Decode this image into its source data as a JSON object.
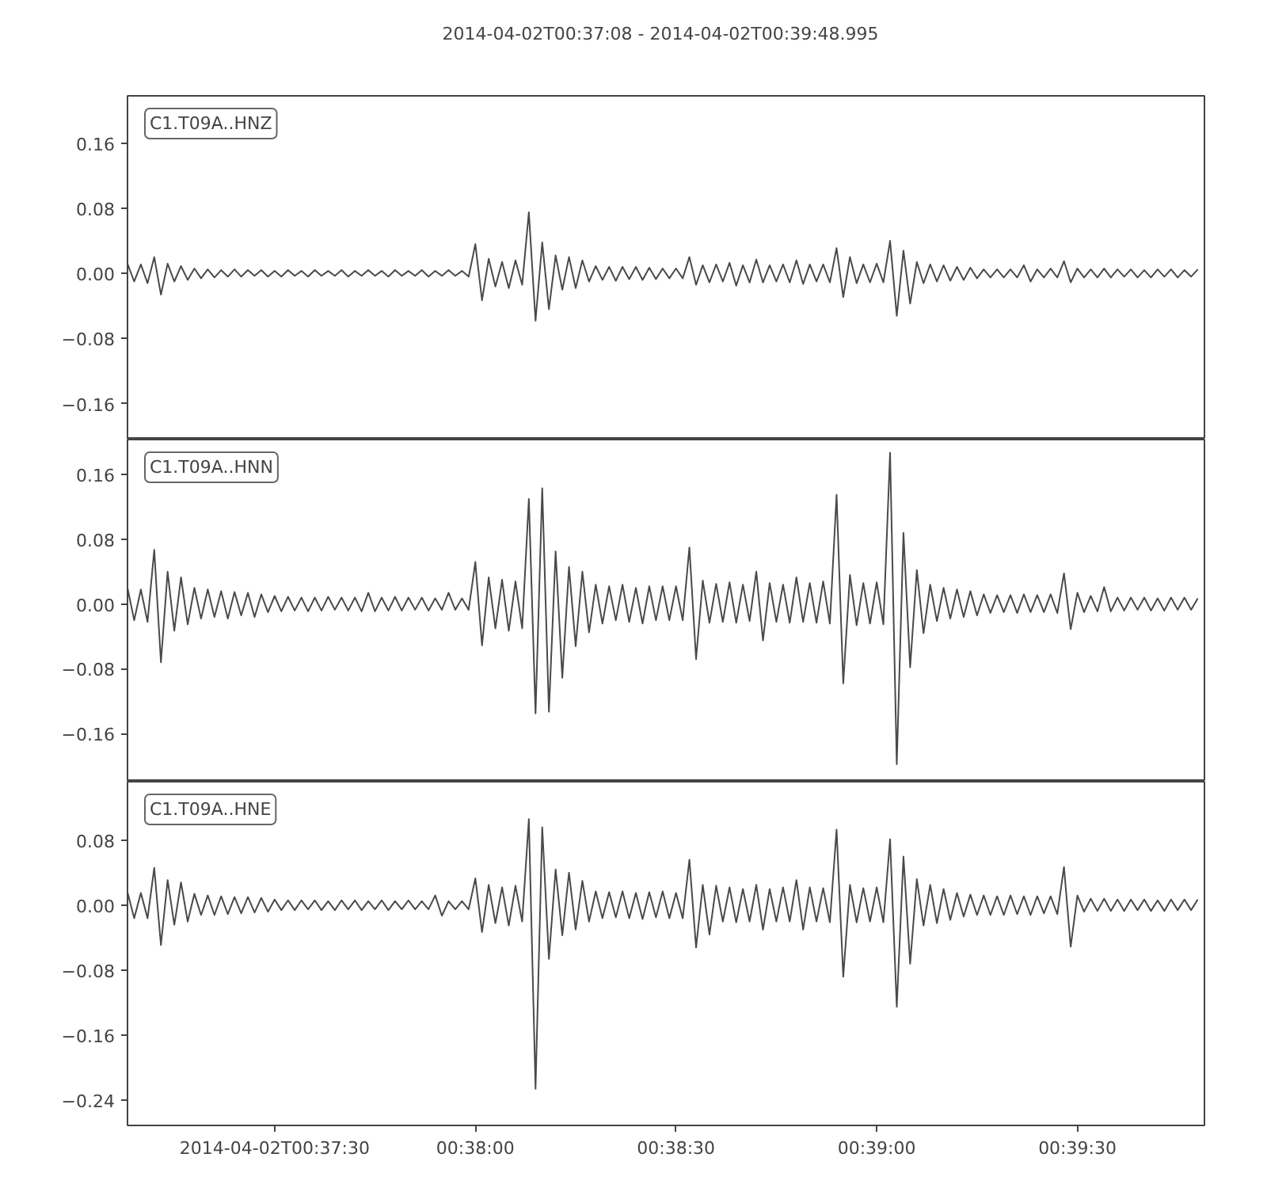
{
  "chart_data": [
    {
      "type": "line",
      "title": "2014-04-02T00:37:08  -  2014-04-02T00:39:48.995",
      "annotations": [
        "C1.T09A..HNZ"
      ],
      "tick_labels": "y",
      "xlim": [
        "2014-04-02T00:37:08",
        "2014-04-02T00:39:48.995"
      ],
      "ylim": [
        -0.204,
        0.218
      ],
      "yticks": [
        {
          "value": -0.16,
          "label": "−0.16"
        },
        {
          "value": -0.08,
          "label": "−0.08"
        },
        {
          "value": 0,
          "label": "0.00"
        },
        {
          "value": 0.08,
          "label": "0.08"
        },
        {
          "value": 0.16,
          "label": "0.16"
        }
      ],
      "x": [
        "2014-04-02T00:37:08",
        "2014-04-02T00:37:09",
        "2014-04-02T00:37:10",
        "2014-04-02T00:37:11",
        "2014-04-02T00:37:12",
        "2014-04-02T00:37:13",
        "2014-04-02T00:37:14",
        "2014-04-02T00:37:15",
        "2014-04-02T00:37:16",
        "2014-04-02T00:37:17",
        "2014-04-02T00:37:18",
        "2014-04-02T00:37:19",
        "2014-04-02T00:37:20",
        "2014-04-02T00:37:21",
        "2014-04-02T00:37:22",
        "2014-04-02T00:37:23",
        "2014-04-02T00:37:24",
        "2014-04-02T00:37:25",
        "2014-04-02T00:37:26",
        "2014-04-02T00:37:27",
        "2014-04-02T00:37:28",
        "2014-04-02T00:37:29",
        "2014-04-02T00:37:30",
        "2014-04-02T00:37:31",
        "2014-04-02T00:37:32",
        "2014-04-02T00:37:33",
        "2014-04-02T00:37:34",
        "2014-04-02T00:37:35",
        "2014-04-02T00:37:36",
        "2014-04-02T00:37:37",
        "2014-04-02T00:37:38",
        "2014-04-02T00:37:39",
        "2014-04-02T00:37:40",
        "2014-04-02T00:37:41",
        "2014-04-02T00:37:42",
        "2014-04-02T00:37:43",
        "2014-04-02T00:37:44",
        "2014-04-02T00:37:45",
        "2014-04-02T00:37:46",
        "2014-04-02T00:37:47",
        "2014-04-02T00:37:48",
        "2014-04-02T00:37:49",
        "2014-04-02T00:37:50",
        "2014-04-02T00:37:51",
        "2014-04-02T00:37:52",
        "2014-04-02T00:37:53",
        "2014-04-02T00:37:54",
        "2014-04-02T00:37:55",
        "2014-04-02T00:37:56",
        "2014-04-02T00:37:57",
        "2014-04-02T00:37:58",
        "2014-04-02T00:37:59",
        "2014-04-02T00:38:00",
        "2014-04-02T00:38:01",
        "2014-04-02T00:38:02",
        "2014-04-02T00:38:03",
        "2014-04-02T00:38:04",
        "2014-04-02T00:38:05",
        "2014-04-02T00:38:06",
        "2014-04-02T00:38:07",
        "2014-04-02T00:38:08",
        "2014-04-02T00:38:09",
        "2014-04-02T00:38:10",
        "2014-04-02T00:38:11",
        "2014-04-02T00:38:12",
        "2014-04-02T00:38:13",
        "2014-04-02T00:38:14",
        "2014-04-02T00:38:15",
        "2014-04-02T00:38:16",
        "2014-04-02T00:38:17",
        "2014-04-02T00:38:18",
        "2014-04-02T00:38:19",
        "2014-04-02T00:38:20",
        "2014-04-02T00:38:21",
        "2014-04-02T00:38:22",
        "2014-04-02T00:38:23",
        "2014-04-02T00:38:24",
        "2014-04-02T00:38:25",
        "2014-04-02T00:38:26",
        "2014-04-02T00:38:27",
        "2014-04-02T00:38:28",
        "2014-04-02T00:38:29",
        "2014-04-02T00:38:30",
        "2014-04-02T00:38:31",
        "2014-04-02T00:38:32",
        "2014-04-02T00:38:33",
        "2014-04-02T00:38:34",
        "2014-04-02T00:38:35",
        "2014-04-02T00:38:36",
        "2014-04-02T00:38:37",
        "2014-04-02T00:38:38",
        "2014-04-02T00:38:39",
        "2014-04-02T00:38:40",
        "2014-04-02T00:38:41",
        "2014-04-02T00:38:42",
        "2014-04-02T00:38:43",
        "2014-04-02T00:38:44",
        "2014-04-02T00:38:45",
        "2014-04-02T00:38:46",
        "2014-04-02T00:38:47",
        "2014-04-02T00:38:48",
        "2014-04-02T00:38:49",
        "2014-04-02T00:38:50",
        "2014-04-02T00:38:51",
        "2014-04-02T00:38:52",
        "2014-04-02T00:38:53",
        "2014-04-02T00:38:54",
        "2014-04-02T00:38:55",
        "2014-04-02T00:38:56",
        "2014-04-02T00:38:57",
        "2014-04-02T00:38:58",
        "2014-04-02T00:38:59",
        "2014-04-02T00:39:00",
        "2014-04-02T00:39:01",
        "2014-04-02T00:39:02",
        "2014-04-02T00:39:03",
        "2014-04-02T00:39:04",
        "2014-04-02T00:39:05",
        "2014-04-02T00:39:06",
        "2014-04-02T00:39:07",
        "2014-04-02T00:39:08",
        "2014-04-02T00:39:09",
        "2014-04-02T00:39:10",
        "2014-04-02T00:39:11",
        "2014-04-02T00:39:12",
        "2014-04-02T00:39:13",
        "2014-04-02T00:39:14",
        "2014-04-02T00:39:15",
        "2014-04-02T00:39:16",
        "2014-04-02T00:39:17",
        "2014-04-02T00:39:18",
        "2014-04-02T00:39:19",
        "2014-04-02T00:39:20",
        "2014-04-02T00:39:21",
        "2014-04-02T00:39:22",
        "2014-04-02T00:39:23",
        "2014-04-02T00:39:24",
        "2014-04-02T00:39:25",
        "2014-04-02T00:39:26",
        "2014-04-02T00:39:27",
        "2014-04-02T00:39:28",
        "2014-04-02T00:39:29",
        "2014-04-02T00:39:30",
        "2014-04-02T00:39:31",
        "2014-04-02T00:39:32",
        "2014-04-02T00:39:33",
        "2014-04-02T00:39:34",
        "2014-04-02T00:39:35",
        "2014-04-02T00:39:36",
        "2014-04-02T00:39:37",
        "2014-04-02T00:39:38",
        "2014-04-02T00:39:39",
        "2014-04-02T00:39:40",
        "2014-04-02T00:39:41",
        "2014-04-02T00:39:42",
        "2014-04-02T00:39:43",
        "2014-04-02T00:39:44",
        "2014-04-02T00:39:45",
        "2014-04-02T00:39:46",
        "2014-04-02T00:39:47",
        "2014-04-02T00:39:48"
      ],
      "series": [
        {
          "color": "#4a4a4a",
          "values": [
            0.012,
            -0.01,
            0.011,
            -0.012,
            0.02,
            -0.026,
            0.012,
            -0.01,
            0.009,
            -0.008,
            0.006,
            -0.006,
            0.005,
            -0.005,
            0.004,
            -0.004,
            0.005,
            -0.004,
            0.004,
            -0.003,
            0.004,
            -0.004,
            0.003,
            -0.004,
            0.004,
            -0.003,
            0.003,
            -0.004,
            0.004,
            -0.003,
            0.003,
            -0.003,
            0.004,
            -0.004,
            0.003,
            -0.003,
            0.004,
            -0.003,
            0.003,
            -0.004,
            0.004,
            -0.003,
            0.003,
            -0.003,
            0.004,
            -0.004,
            0.003,
            -0.003,
            0.004,
            -0.003,
            0.003,
            -0.004,
            0.036,
            -0.033,
            0.018,
            -0.016,
            0.014,
            -0.018,
            0.016,
            -0.014,
            0.075,
            -0.058,
            0.038,
            -0.044,
            0.022,
            -0.02,
            0.02,
            -0.018,
            0.016,
            -0.01,
            0.009,
            -0.008,
            0.008,
            -0.009,
            0.008,
            -0.007,
            0.008,
            -0.008,
            0.007,
            -0.007,
            0.006,
            -0.006,
            0.006,
            -0.006,
            0.02,
            -0.014,
            0.01,
            -0.011,
            0.011,
            -0.01,
            0.013,
            -0.015,
            0.01,
            -0.011,
            0.017,
            -0.011,
            0.01,
            -0.01,
            0.011,
            -0.011,
            0.016,
            -0.013,
            0.011,
            -0.01,
            0.011,
            -0.011,
            0.031,
            -0.029,
            0.02,
            -0.012,
            0.011,
            -0.011,
            0.012,
            -0.011,
            0.04,
            -0.052,
            0.028,
            -0.037,
            0.014,
            -0.012,
            0.011,
            -0.01,
            0.01,
            -0.009,
            0.008,
            -0.008,
            0.007,
            -0.006,
            0.005,
            -0.005,
            0.005,
            -0.005,
            0.005,
            -0.005,
            0.01,
            -0.01,
            0.005,
            -0.005,
            0.006,
            -0.005,
            0.015,
            -0.011,
            0.006,
            -0.005,
            0.005,
            -0.005,
            0.006,
            -0.005,
            0.005,
            -0.004,
            0.005,
            -0.005,
            0.004,
            -0.005,
            0.005,
            -0.004,
            0.005,
            -0.005,
            0.004,
            -0.004,
            0.005
          ]
        }
      ]
    },
    {
      "type": "line",
      "annotations": [
        "C1.T09A..HNN"
      ],
      "tick_labels": "y",
      "xlim": [
        "2014-04-02T00:37:08",
        "2014-04-02T00:39:48.995"
      ],
      "ylim": [
        -0.2195,
        0.2033
      ],
      "yticks": [
        {
          "value": -0.16,
          "label": "−0.16"
        },
        {
          "value": -0.08,
          "label": "−0.08"
        },
        {
          "value": 0,
          "label": "0.00"
        },
        {
          "value": 0.08,
          "label": "0.08"
        },
        {
          "value": 0.16,
          "label": "0.16"
        }
      ],
      "x": [
        "2014-04-02T00:37:08",
        "2014-04-02T00:37:09",
        "2014-04-02T00:37:10",
        "2014-04-02T00:37:11",
        "2014-04-02T00:37:12",
        "2014-04-02T00:37:13",
        "2014-04-02T00:37:14",
        "2014-04-02T00:37:15",
        "2014-04-02T00:37:16",
        "2014-04-02T00:37:17",
        "2014-04-02T00:37:18",
        "2014-04-02T00:37:19",
        "2014-04-02T00:37:20",
        "2014-04-02T00:37:21",
        "2014-04-02T00:37:22",
        "2014-04-02T00:37:23",
        "2014-04-02T00:37:24",
        "2014-04-02T00:37:25",
        "2014-04-02T00:37:26",
        "2014-04-02T00:37:27",
        "2014-04-02T00:37:28",
        "2014-04-02T00:37:29",
        "2014-04-02T00:37:30",
        "2014-04-02T00:37:31",
        "2014-04-02T00:37:32",
        "2014-04-02T00:37:33",
        "2014-04-02T00:37:34",
        "2014-04-02T00:37:35",
        "2014-04-02T00:37:36",
        "2014-04-02T00:37:37",
        "2014-04-02T00:37:38",
        "2014-04-02T00:37:39",
        "2014-04-02T00:37:40",
        "2014-04-02T00:37:41",
        "2014-04-02T00:37:42",
        "2014-04-02T00:37:43",
        "2014-04-02T00:37:44",
        "2014-04-02T00:37:45",
        "2014-04-02T00:37:46",
        "2014-04-02T00:37:47",
        "2014-04-02T00:37:48",
        "2014-04-02T00:37:49",
        "2014-04-02T00:37:50",
        "2014-04-02T00:37:51",
        "2014-04-02T00:37:52",
        "2014-04-02T00:37:53",
        "2014-04-02T00:37:54",
        "2014-04-02T00:37:55",
        "2014-04-02T00:37:56",
        "2014-04-02T00:37:57",
        "2014-04-02T00:37:58",
        "2014-04-02T00:37:59",
        "2014-04-02T00:38:00",
        "2014-04-02T00:38:01",
        "2014-04-02T00:38:02",
        "2014-04-02T00:38:03",
        "2014-04-02T00:38:04",
        "2014-04-02T00:38:05",
        "2014-04-02T00:38:06",
        "2014-04-02T00:38:07",
        "2014-04-02T00:38:08",
        "2014-04-02T00:38:09",
        "2014-04-02T00:38:10",
        "2014-04-02T00:38:11",
        "2014-04-02T00:38:12",
        "2014-04-02T00:38:13",
        "2014-04-02T00:38:14",
        "2014-04-02T00:38:15",
        "2014-04-02T00:38:16",
        "2014-04-02T00:38:17",
        "2014-04-02T00:38:18",
        "2014-04-02T00:38:19",
        "2014-04-02T00:38:20",
        "2014-04-02T00:38:21",
        "2014-04-02T00:38:22",
        "2014-04-02T00:38:23",
        "2014-04-02T00:38:24",
        "2014-04-02T00:38:25",
        "2014-04-02T00:38:26",
        "2014-04-02T00:38:27",
        "2014-04-02T00:38:28",
        "2014-04-02T00:38:29",
        "2014-04-02T00:38:30",
        "2014-04-02T00:38:31",
        "2014-04-02T00:38:32",
        "2014-04-02T00:38:33",
        "2014-04-02T00:38:34",
        "2014-04-02T00:38:35",
        "2014-04-02T00:38:36",
        "2014-04-02T00:38:37",
        "2014-04-02T00:38:38",
        "2014-04-02T00:38:39",
        "2014-04-02T00:38:40",
        "2014-04-02T00:38:41",
        "2014-04-02T00:38:42",
        "2014-04-02T00:38:43",
        "2014-04-02T00:38:44",
        "2014-04-02T00:38:45",
        "2014-04-02T00:38:46",
        "2014-04-02T00:38:47",
        "2014-04-02T00:38:48",
        "2014-04-02T00:38:49",
        "2014-04-02T00:38:50",
        "2014-04-02T00:38:51",
        "2014-04-02T00:38:52",
        "2014-04-02T00:38:53",
        "2014-04-02T00:38:54",
        "2014-04-02T00:38:55",
        "2014-04-02T00:38:56",
        "2014-04-02T00:38:57",
        "2014-04-02T00:38:58",
        "2014-04-02T00:38:59",
        "2014-04-02T00:39:00",
        "2014-04-02T00:39:01",
        "2014-04-02T00:39:02",
        "2014-04-02T00:39:03",
        "2014-04-02T00:39:04",
        "2014-04-02T00:39:05",
        "2014-04-02T00:39:06",
        "2014-04-02T00:39:07",
        "2014-04-02T00:39:08",
        "2014-04-02T00:39:09",
        "2014-04-02T00:39:10",
        "2014-04-02T00:39:11",
        "2014-04-02T00:39:12",
        "2014-04-02T00:39:13",
        "2014-04-02T00:39:14",
        "2014-04-02T00:39:15",
        "2014-04-02T00:39:16",
        "2014-04-02T00:39:17",
        "2014-04-02T00:39:18",
        "2014-04-02T00:39:19",
        "2014-04-02T00:39:20",
        "2014-04-02T00:39:21",
        "2014-04-02T00:39:22",
        "2014-04-02T00:39:23",
        "2014-04-02T00:39:24",
        "2014-04-02T00:39:25",
        "2014-04-02T00:39:26",
        "2014-04-02T00:39:27",
        "2014-04-02T00:39:28",
        "2014-04-02T00:39:29",
        "2014-04-02T00:39:30",
        "2014-04-02T00:39:31",
        "2014-04-02T00:39:32",
        "2014-04-02T00:39:33",
        "2014-04-02T00:39:34",
        "2014-04-02T00:39:35",
        "2014-04-02T00:39:36",
        "2014-04-02T00:39:37",
        "2014-04-02T00:39:38",
        "2014-04-02T00:39:39",
        "2014-04-02T00:39:40",
        "2014-04-02T00:39:41",
        "2014-04-02T00:39:42",
        "2014-04-02T00:39:43",
        "2014-04-02T00:39:44",
        "2014-04-02T00:39:45",
        "2014-04-02T00:39:46",
        "2014-04-02T00:39:47",
        "2014-04-02T00:39:48"
      ],
      "series": [
        {
          "color": "#4a4a4a",
          "values": [
            0.02,
            -0.02,
            0.018,
            -0.022,
            0.067,
            -0.072,
            0.04,
            -0.033,
            0.033,
            -0.025,
            0.02,
            -0.018,
            0.018,
            -0.016,
            0.016,
            -0.018,
            0.015,
            -0.014,
            0.014,
            -0.016,
            0.012,
            -0.01,
            0.01,
            -0.009,
            0.009,
            -0.008,
            0.008,
            -0.009,
            0.008,
            -0.008,
            0.009,
            -0.007,
            0.008,
            -0.008,
            0.008,
            -0.009,
            0.014,
            -0.009,
            0.008,
            -0.008,
            0.009,
            -0.008,
            0.008,
            -0.007,
            0.008,
            -0.008,
            0.007,
            -0.007,
            0.014,
            -0.007,
            0.007,
            -0.007,
            0.052,
            -0.051,
            0.033,
            -0.03,
            0.03,
            -0.033,
            0.028,
            -0.03,
            0.13,
            -0.135,
            0.143,
            -0.133,
            0.065,
            -0.091,
            0.046,
            -0.052,
            0.04,
            -0.035,
            0.024,
            -0.024,
            0.022,
            -0.02,
            0.024,
            -0.022,
            0.02,
            -0.024,
            0.022,
            -0.02,
            0.022,
            -0.02,
            0.022,
            -0.02,
            0.07,
            -0.068,
            0.029,
            -0.023,
            0.025,
            -0.022,
            0.027,
            -0.023,
            0.024,
            -0.021,
            0.04,
            -0.045,
            0.026,
            -0.022,
            0.024,
            -0.023,
            0.033,
            -0.022,
            0.026,
            -0.023,
            0.028,
            -0.024,
            0.135,
            -0.098,
            0.036,
            -0.026,
            0.026,
            -0.024,
            0.027,
            -0.025,
            0.187,
            -0.198,
            0.088,
            -0.078,
            0.042,
            -0.036,
            0.024,
            -0.021,
            0.02,
            -0.018,
            0.018,
            -0.016,
            0.016,
            -0.014,
            0.012,
            -0.011,
            0.011,
            -0.01,
            0.011,
            -0.011,
            0.012,
            -0.01,
            0.011,
            -0.01,
            0.012,
            -0.011,
            0.038,
            -0.031,
            0.014,
            -0.01,
            0.01,
            -0.009,
            0.021,
            -0.009,
            0.008,
            -0.008,
            0.008,
            -0.007,
            0.008,
            -0.008,
            0.007,
            -0.008,
            0.008,
            -0.007,
            0.008,
            -0.007,
            0.007
          ]
        }
      ]
    },
    {
      "type": "line",
      "annotations": [
        "C1.T09A..HNE"
      ],
      "xlim": [
        "2014-04-02T00:37:08",
        "2014-04-02T00:39:48.995"
      ],
      "ylim": [
        -0.271,
        0.152
      ],
      "xticks": [
        {
          "value": "2014-04-02T00:37:30",
          "label": "2014-04-02T00:37:30"
        },
        {
          "value": "2014-04-02T00:38:00",
          "label": "00:38:00"
        },
        {
          "value": "2014-04-02T00:38:30",
          "label": "00:38:30"
        },
        {
          "value": "2014-04-02T00:39:00",
          "label": "00:39:00"
        },
        {
          "value": "2014-04-02T00:39:30",
          "label": "00:39:30"
        }
      ],
      "yticks": [
        {
          "value": -0.24,
          "label": "−0.24"
        },
        {
          "value": -0.16,
          "label": "−0.16"
        },
        {
          "value": -0.08,
          "label": "−0.08"
        },
        {
          "value": 0,
          "label": "0.00"
        },
        {
          "value": 0.08,
          "label": "0.08"
        }
      ],
      "x": [
        "2014-04-02T00:37:08",
        "2014-04-02T00:37:09",
        "2014-04-02T00:37:10",
        "2014-04-02T00:37:11",
        "2014-04-02T00:37:12",
        "2014-04-02T00:37:13",
        "2014-04-02T00:37:14",
        "2014-04-02T00:37:15",
        "2014-04-02T00:37:16",
        "2014-04-02T00:37:17",
        "2014-04-02T00:37:18",
        "2014-04-02T00:37:19",
        "2014-04-02T00:37:20",
        "2014-04-02T00:37:21",
        "2014-04-02T00:37:22",
        "2014-04-02T00:37:23",
        "2014-04-02T00:37:24",
        "2014-04-02T00:37:25",
        "2014-04-02T00:37:26",
        "2014-04-02T00:37:27",
        "2014-04-02T00:37:28",
        "2014-04-02T00:37:29",
        "2014-04-02T00:37:30",
        "2014-04-02T00:37:31",
        "2014-04-02T00:37:32",
        "2014-04-02T00:37:33",
        "2014-04-02T00:37:34",
        "2014-04-02T00:37:35",
        "2014-04-02T00:37:36",
        "2014-04-02T00:37:37",
        "2014-04-02T00:37:38",
        "2014-04-02T00:37:39",
        "2014-04-02T00:37:40",
        "2014-04-02T00:37:41",
        "2014-04-02T00:37:42",
        "2014-04-02T00:37:43",
        "2014-04-02T00:37:44",
        "2014-04-02T00:37:45",
        "2014-04-02T00:37:46",
        "2014-04-02T00:37:47",
        "2014-04-02T00:37:48",
        "2014-04-02T00:37:49",
        "2014-04-02T00:37:50",
        "2014-04-02T00:37:51",
        "2014-04-02T00:37:52",
        "2014-04-02T00:37:53",
        "2014-04-02T00:37:54",
        "2014-04-02T00:37:55",
        "2014-04-02T00:37:56",
        "2014-04-02T00:37:57",
        "2014-04-02T00:37:58",
        "2014-04-02T00:37:59",
        "2014-04-02T00:38:00",
        "2014-04-02T00:38:01",
        "2014-04-02T00:38:02",
        "2014-04-02T00:38:03",
        "2014-04-02T00:38:04",
        "2014-04-02T00:38:05",
        "2014-04-02T00:38:06",
        "2014-04-02T00:38:07",
        "2014-04-02T00:38:08",
        "2014-04-02T00:38:09",
        "2014-04-02T00:38:10",
        "2014-04-02T00:38:11",
        "2014-04-02T00:38:12",
        "2014-04-02T00:38:13",
        "2014-04-02T00:38:14",
        "2014-04-02T00:38:15",
        "2014-04-02T00:38:16",
        "2014-04-02T00:38:17",
        "2014-04-02T00:38:18",
        "2014-04-02T00:38:19",
        "2014-04-02T00:38:20",
        "2014-04-02T00:38:21",
        "2014-04-02T00:38:22",
        "2014-04-02T00:38:23",
        "2014-04-02T00:38:24",
        "2014-04-02T00:38:25",
        "2014-04-02T00:38:26",
        "2014-04-02T00:38:27",
        "2014-04-02T00:38:28",
        "2014-04-02T00:38:29",
        "2014-04-02T00:38:30",
        "2014-04-02T00:38:31",
        "2014-04-02T00:38:32",
        "2014-04-02T00:38:33",
        "2014-04-02T00:38:34",
        "2014-04-02T00:38:35",
        "2014-04-02T00:38:36",
        "2014-04-02T00:38:37",
        "2014-04-02T00:38:38",
        "2014-04-02T00:38:39",
        "2014-04-02T00:38:40",
        "2014-04-02T00:38:41",
        "2014-04-02T00:38:42",
        "2014-04-02T00:38:43",
        "2014-04-02T00:38:44",
        "2014-04-02T00:38:45",
        "2014-04-02T00:38:46",
        "2014-04-02T00:38:47",
        "2014-04-02T00:38:48",
        "2014-04-02T00:38:49",
        "2014-04-02T00:38:50",
        "2014-04-02T00:38:51",
        "2014-04-02T00:38:52",
        "2014-04-02T00:38:53",
        "2014-04-02T00:38:54",
        "2014-04-02T00:38:55",
        "2014-04-02T00:38:56",
        "2014-04-02T00:38:57",
        "2014-04-02T00:38:58",
        "2014-04-02T00:38:59",
        "2014-04-02T00:39:00",
        "2014-04-02T00:39:01",
        "2014-04-02T00:39:02",
        "2014-04-02T00:39:03",
        "2014-04-02T00:39:04",
        "2014-04-02T00:39:05",
        "2014-04-02T00:39:06",
        "2014-04-02T00:39:07",
        "2014-04-02T00:39:08",
        "2014-04-02T00:39:09",
        "2014-04-02T00:39:10",
        "2014-04-02T00:39:11",
        "2014-04-02T00:39:12",
        "2014-04-02T00:39:13",
        "2014-04-02T00:39:14",
        "2014-04-02T00:39:15",
        "2014-04-02T00:39:16",
        "2014-04-02T00:39:17",
        "2014-04-02T00:39:18",
        "2014-04-02T00:39:19",
        "2014-04-02T00:39:20",
        "2014-04-02T00:39:21",
        "2014-04-02T00:39:22",
        "2014-04-02T00:39:23",
        "2014-04-02T00:39:24",
        "2014-04-02T00:39:25",
        "2014-04-02T00:39:26",
        "2014-04-02T00:39:27",
        "2014-04-02T00:39:28",
        "2014-04-02T00:39:29",
        "2014-04-02T00:39:30",
        "2014-04-02T00:39:31",
        "2014-04-02T00:39:32",
        "2014-04-02T00:39:33",
        "2014-04-02T00:39:34",
        "2014-04-02T00:39:35",
        "2014-04-02T00:39:36",
        "2014-04-02T00:39:37",
        "2014-04-02T00:39:38",
        "2014-04-02T00:39:39",
        "2014-04-02T00:39:40",
        "2014-04-02T00:39:41",
        "2014-04-02T00:39:42",
        "2014-04-02T00:39:43",
        "2014-04-02T00:39:44",
        "2014-04-02T00:39:45",
        "2014-04-02T00:39:46",
        "2014-04-02T00:39:47",
        "2014-04-02T00:39:48"
      ],
      "series": [
        {
          "color": "#4a4a4a",
          "values": [
            0.016,
            -0.016,
            0.015,
            -0.016,
            0.046,
            -0.049,
            0.031,
            -0.024,
            0.028,
            -0.02,
            0.014,
            -0.012,
            0.012,
            -0.012,
            0.011,
            -0.011,
            0.01,
            -0.01,
            0.01,
            -0.009,
            0.009,
            -0.008,
            0.007,
            -0.006,
            0.006,
            -0.006,
            0.006,
            -0.005,
            0.006,
            -0.006,
            0.005,
            -0.006,
            0.006,
            -0.005,
            0.006,
            -0.006,
            0.005,
            -0.005,
            0.006,
            -0.006,
            0.005,
            -0.005,
            0.006,
            -0.005,
            0.005,
            -0.005,
            0.012,
            -0.013,
            0.005,
            -0.005,
            0.005,
            -0.005,
            0.033,
            -0.033,
            0.025,
            -0.022,
            0.022,
            -0.025,
            0.024,
            -0.02,
            0.106,
            -0.226,
            0.096,
            -0.066,
            0.044,
            -0.037,
            0.04,
            -0.03,
            0.03,
            -0.02,
            0.017,
            -0.016,
            0.016,
            -0.015,
            0.017,
            -0.016,
            0.015,
            -0.017,
            0.016,
            -0.015,
            0.017,
            -0.016,
            0.015,
            -0.016,
            0.056,
            -0.052,
            0.025,
            -0.036,
            0.024,
            -0.02,
            0.022,
            -0.021,
            0.02,
            -0.02,
            0.025,
            -0.03,
            0.02,
            -0.02,
            0.022,
            -0.02,
            0.031,
            -0.03,
            0.022,
            -0.02,
            0.021,
            -0.021,
            0.093,
            -0.088,
            0.025,
            -0.021,
            0.021,
            -0.02,
            0.022,
            -0.021,
            0.081,
            -0.125,
            0.06,
            -0.072,
            0.032,
            -0.025,
            0.025,
            -0.022,
            0.02,
            -0.018,
            0.015,
            -0.014,
            0.013,
            -0.012,
            0.012,
            -0.012,
            0.011,
            -0.012,
            0.012,
            -0.011,
            0.011,
            -0.012,
            0.011,
            -0.01,
            0.011,
            -0.011,
            0.047,
            -0.051,
            0.012,
            -0.008,
            0.008,
            -0.007,
            0.008,
            -0.007,
            0.007,
            -0.007,
            0.007,
            -0.006,
            0.007,
            -0.007,
            0.006,
            -0.007,
            0.007,
            -0.006,
            0.007,
            -0.006,
            0.007
          ]
        }
      ]
    }
  ]
}
